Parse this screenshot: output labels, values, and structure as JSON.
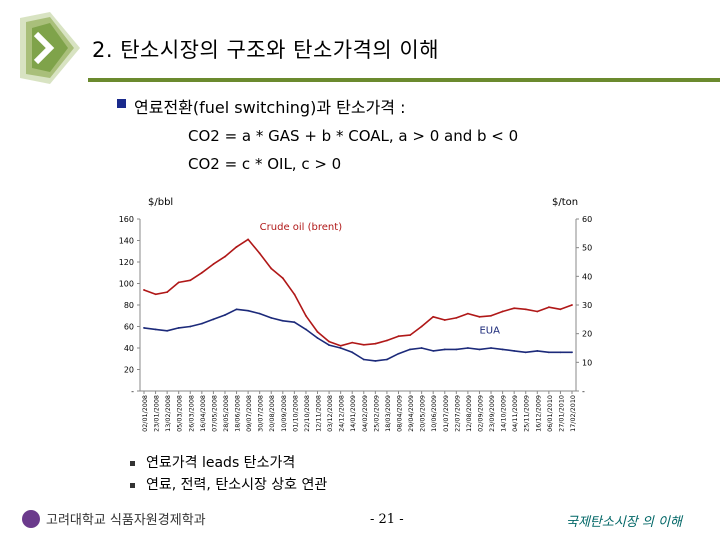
{
  "slide": {
    "title": "2. 탄소시장의 구조와 탄소가격의 이해",
    "heading": "연료전환(fuel switching)과 탄소가격 :",
    "equation1": "CO2 = a * GAS + b * COAL, a > 0 and b < 0",
    "equation2": "CO2 = c * OIL, c > 0",
    "bullets": [
      "연료가격 leads 탄소가격",
      "연료, 전력, 탄소시장 상호 연관"
    ],
    "footer_left": "고려대학교 식품자원경제학과",
    "footer_center": "- 21 -",
    "footer_right": "국제탄소시장 의 이해",
    "colors": {
      "accent_green": "#6b8a2e",
      "bullet_blue": "#1a2a8c",
      "footer_teal": "#006666"
    }
  },
  "chart_data": {
    "type": "line",
    "left_axis_unit": "$/bbl",
    "right_axis_unit": "$/ton",
    "left_ticks": [
      "160",
      "140",
      "120",
      "100",
      "80",
      "60",
      "40",
      "20",
      "-"
    ],
    "right_ticks": [
      "60",
      "50",
      "40",
      "30",
      "20",
      "10",
      "-"
    ],
    "ylim_left": [
      0,
      160
    ],
    "ylim_right": [
      0,
      60
    ],
    "x_labels": [
      "02/01/2008",
      "23/01/2008",
      "13/02/2008",
      "05/03/2008",
      "26/03/2008",
      "16/04/2008",
      "07/05/2008",
      "28/05/2008",
      "18/06/2008",
      "09/07/2008",
      "30/07/2008",
      "20/08/2008",
      "10/09/2008",
      "01/10/2008",
      "22/10/2008",
      "12/11/2008",
      "03/12/2008",
      "24/12/2008",
      "14/01/2009",
      "04/02/2009",
      "25/02/2009",
      "18/03/2009",
      "08/04/2009",
      "29/04/2009",
      "20/05/2009",
      "10/06/2009",
      "01/07/2009",
      "22/07/2009",
      "12/08/2009",
      "02/09/2009",
      "23/09/2009",
      "14/10/2009",
      "04/11/2009",
      "25/11/2009",
      "16/12/2009",
      "06/01/2010",
      "27/01/2010",
      "17/02/2010"
    ],
    "series": [
      {
        "name": "Crude oil (brent)",
        "axis": "left",
        "color": "#b01818",
        "values": [
          94,
          90,
          92,
          101,
          103,
          110,
          118,
          125,
          134,
          141,
          128,
          114,
          105,
          90,
          70,
          55,
          46,
          42,
          45,
          43,
          44,
          47,
          51,
          52,
          60,
          69,
          66,
          68,
          72,
          69,
          70,
          74,
          77,
          76,
          74,
          78,
          76,
          80
        ]
      },
      {
        "name": "EUA",
        "axis": "right",
        "color": "#1c2a7a",
        "values": [
          22,
          21.5,
          21,
          22,
          22.5,
          23.5,
          25,
          26.5,
          28.5,
          28,
          27,
          25.5,
          24.5,
          24,
          21.5,
          18.5,
          16,
          15,
          13.5,
          11,
          10.5,
          11,
          13,
          14.5,
          15,
          14,
          14.5,
          14.5,
          15,
          14.5,
          15,
          14.5,
          14,
          13.5,
          14,
          13.5,
          13.5,
          13.5
        ]
      }
    ],
    "grid": false,
    "legend": "inline labels"
  }
}
